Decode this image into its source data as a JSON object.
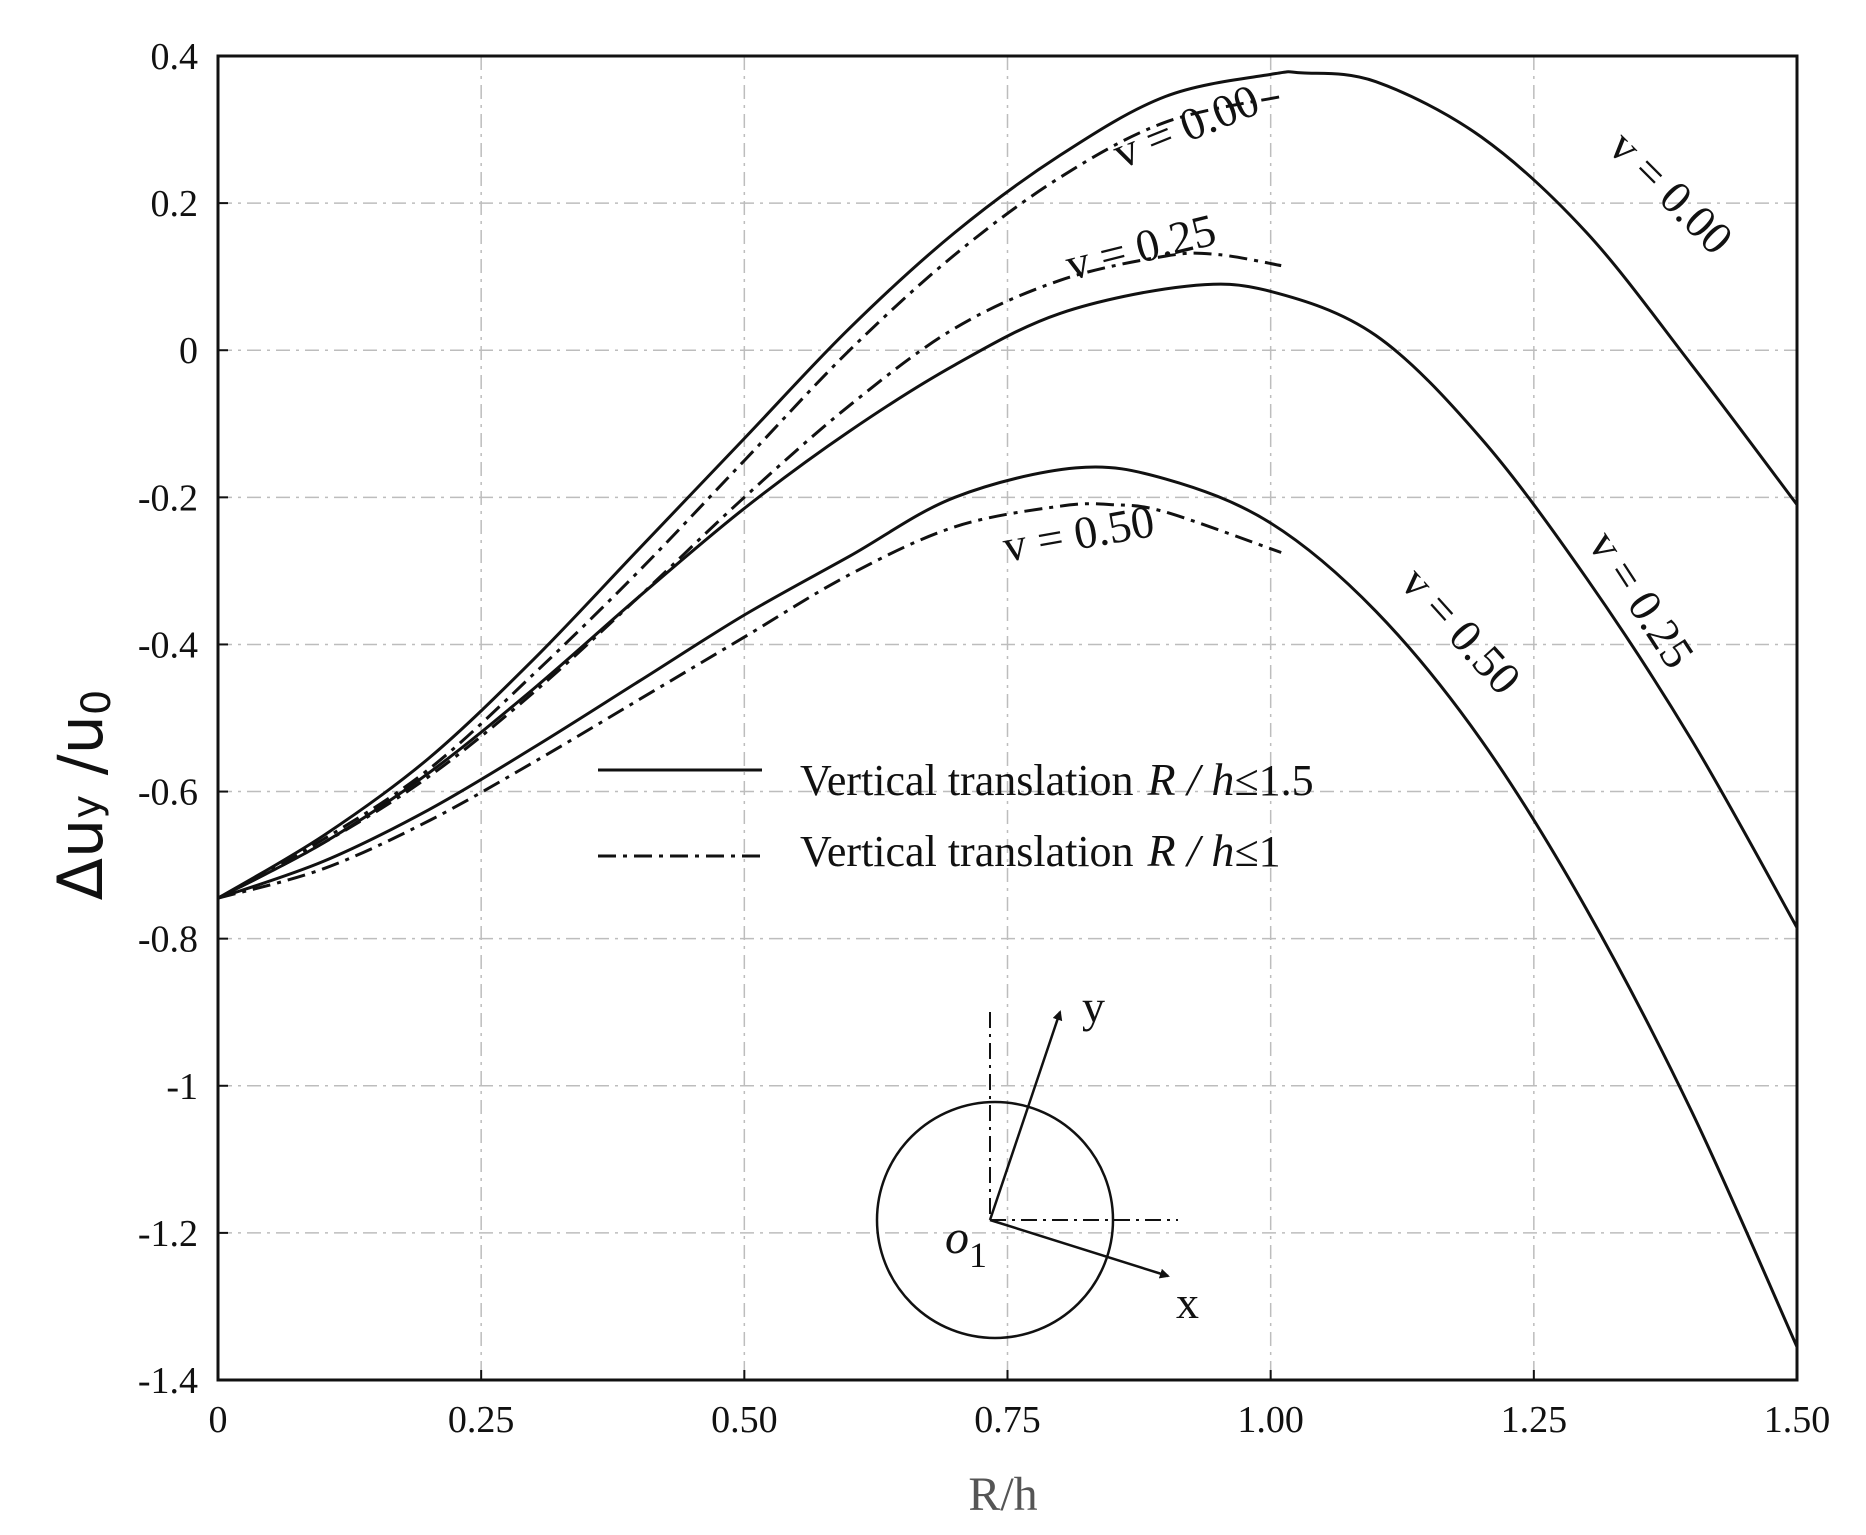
{
  "chart_data": {
    "type": "line",
    "title": "",
    "xlabel": "R/h",
    "ylabel": "Δuy /u0",
    "ylabel_parts": {
      "symbol": "Δu",
      "sub": "y",
      "mid": " /u",
      "sub2": "0"
    },
    "xlim": [
      0,
      1.5
    ],
    "ylim": [
      -1.4,
      0.4
    ],
    "xticks": [
      0,
      0.25,
      0.5,
      0.75,
      1.0,
      1.25,
      1.5
    ],
    "xtick_labels": [
      "0",
      "0.25",
      "0.50",
      "0.75",
      "1.00",
      "1.25",
      "1.50"
    ],
    "yticks": [
      0.4,
      0.2,
      0,
      -0.2,
      -0.4,
      -0.6,
      -0.8,
      -1,
      -1.2,
      -1.4
    ],
    "ytick_labels": [
      "0.4",
      "0.2",
      "0",
      "-0.2",
      "-0.4",
      "-0.6",
      "-0.8",
      "-1",
      "-1.2",
      "-1.4"
    ],
    "grid": true,
    "legend": {
      "position": "center",
      "entries": [
        {
          "text": "Vertical translation",
          "math_var": "R / h",
          "math_rel": "≤1.5",
          "style": "solid"
        },
        {
          "text": "Vertical translation",
          "math_var": "R / h",
          "math_rel": "≤1",
          "style": "dashdot"
        }
      ]
    },
    "series": [
      {
        "name": "v = 0.00",
        "style": "solid",
        "x": [
          0,
          0.1,
          0.2,
          0.3,
          0.4,
          0.5,
          0.6,
          0.7,
          0.8,
          0.9,
          1.0,
          1.03,
          1.1,
          1.2,
          1.3,
          1.4,
          1.5
        ],
        "y": [
          -0.745,
          -0.66,
          -0.555,
          -0.42,
          -0.27,
          -0.12,
          0.03,
          0.16,
          0.265,
          0.345,
          0.375,
          0.377,
          0.365,
          0.29,
          0.16,
          -0.02,
          -0.21
        ]
      },
      {
        "name": "v = 0.25",
        "style": "solid",
        "x": [
          0,
          0.1,
          0.2,
          0.3,
          0.4,
          0.5,
          0.6,
          0.7,
          0.8,
          0.92,
          1.0,
          1.1,
          1.2,
          1.3,
          1.4,
          1.5
        ],
        "y": [
          -0.745,
          -0.67,
          -0.575,
          -0.46,
          -0.335,
          -0.215,
          -0.11,
          -0.02,
          0.05,
          0.087,
          0.08,
          0.02,
          -0.12,
          -0.31,
          -0.53,
          -0.785
        ]
      },
      {
        "name": "v = 0.50",
        "style": "solid",
        "x": [
          0,
          0.1,
          0.2,
          0.3,
          0.4,
          0.5,
          0.6,
          0.7,
          0.815,
          0.9,
          1.0,
          1.1,
          1.2,
          1.3,
          1.4,
          1.5
        ],
        "y": [
          -0.745,
          -0.695,
          -0.625,
          -0.54,
          -0.45,
          -0.36,
          -0.28,
          -0.2,
          -0.16,
          -0.175,
          -0.235,
          -0.355,
          -0.53,
          -0.76,
          -1.035,
          -1.355
        ]
      },
      {
        "name": "v = 0.00",
        "style": "dashdot",
        "x": [
          0,
          0.1,
          0.2,
          0.3,
          0.4,
          0.5,
          0.6,
          0.7,
          0.8,
          0.9,
          1.01
        ],
        "y": [
          -0.745,
          -0.665,
          -0.57,
          -0.44,
          -0.3,
          -0.15,
          0.0,
          0.13,
          0.235,
          0.31,
          0.345
        ]
      },
      {
        "name": "v = 0.25",
        "style": "dashdot",
        "x": [
          0,
          0.1,
          0.2,
          0.3,
          0.4,
          0.5,
          0.6,
          0.7,
          0.8,
          0.9,
          0.95,
          1.01
        ],
        "y": [
          -0.745,
          -0.67,
          -0.58,
          -0.465,
          -0.335,
          -0.2,
          -0.075,
          0.03,
          0.095,
          0.128,
          0.13,
          0.115
        ]
      },
      {
        "name": "v = 0.50",
        "style": "dashdot",
        "x": [
          0,
          0.1,
          0.2,
          0.3,
          0.4,
          0.5,
          0.6,
          0.7,
          0.8,
          0.85,
          0.9,
          1.01
        ],
        "y": [
          -0.745,
          -0.705,
          -0.64,
          -0.56,
          -0.475,
          -0.39,
          -0.305,
          -0.24,
          -0.212,
          -0.21,
          -0.22,
          -0.275
        ]
      }
    ],
    "annotations": [
      {
        "text": "v = 0.00",
        "x": 0.925,
        "y": 0.285,
        "angle": -22
      },
      {
        "text": "v = 0.25",
        "x": 0.88,
        "y": 0.12,
        "angle": -14
      },
      {
        "text": "v = 0.50",
        "x": 0.82,
        "y": -0.27,
        "angle": -10
      },
      {
        "text": "v = 0.00",
        "x": 1.37,
        "y": 0.2,
        "angle": 45
      },
      {
        "text": "v = 0.25",
        "x": 1.34,
        "y": -0.35,
        "angle": 57
      },
      {
        "text": "v = 0.50",
        "x": 1.17,
        "y": -0.395,
        "angle": 48
      }
    ],
    "inset": {
      "description": "circle with rotated axes",
      "axis_labels": {
        "y": "y",
        "x": "x"
      },
      "origin_label": "o",
      "origin_sub": "1"
    }
  }
}
